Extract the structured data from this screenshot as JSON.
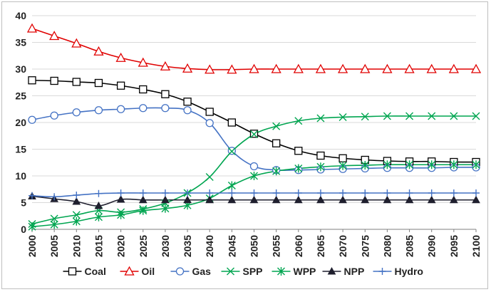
{
  "chart_data": {
    "type": "line",
    "title": "",
    "xlabel": "",
    "ylabel": "",
    "x": [
      2000,
      2005,
      2010,
      2015,
      2020,
      2025,
      2030,
      2035,
      2040,
      2045,
      2050,
      2055,
      2060,
      2065,
      2070,
      2075,
      2080,
      2085,
      2090,
      2095,
      2100
    ],
    "x_tick_labels": [
      "2000",
      "2005",
      "2010",
      "2015",
      "2020",
      "2025",
      "2030",
      "2035",
      "2040",
      "2045",
      "2050",
      "2055",
      "2060",
      "2065",
      "2070",
      "2075",
      "2080",
      "2085",
      "2090",
      "2095",
      "2100"
    ],
    "ylim": [
      0,
      40
    ],
    "y_ticks": [
      0,
      5,
      10,
      15,
      20,
      25,
      30,
      35,
      40
    ],
    "y_tick_labels": [
      "0",
      "5",
      "10",
      "15",
      "20",
      "25",
      "30",
      "35",
      "40"
    ],
    "grid": "horizontal",
    "legend_position": "bottom",
    "series": [
      {
        "name": "Coal",
        "color": "#000000",
        "marker": "square",
        "values": [
          27.9,
          27.8,
          27.6,
          27.4,
          26.9,
          26.2,
          25.3,
          23.9,
          22.0,
          20.0,
          17.9,
          16.1,
          14.7,
          13.8,
          13.3,
          13.0,
          12.8,
          12.7,
          12.7,
          12.6,
          12.6
        ]
      },
      {
        "name": "Oil",
        "color": "#e00000",
        "marker": "triangle",
        "values": [
          37.6,
          36.2,
          34.8,
          33.3,
          32.1,
          31.2,
          30.5,
          30.1,
          29.9,
          29.9,
          30.0,
          30.0,
          30.0,
          30.0,
          30.0,
          30.0,
          30.0,
          30.0,
          30.0,
          30.0,
          30.0
        ]
      },
      {
        "name": "Gas",
        "color": "#4472c4",
        "marker": "circle",
        "values": [
          20.5,
          21.3,
          21.9,
          22.3,
          22.5,
          22.7,
          22.7,
          22.3,
          19.9,
          14.7,
          11.8,
          11.1,
          11.1,
          11.2,
          11.3,
          11.4,
          11.5,
          11.5,
          11.5,
          11.6,
          11.6
        ]
      },
      {
        "name": "SPP",
        "color": "#00a550",
        "marker": "x",
        "values": [
          1.0,
          2.0,
          2.7,
          3.5,
          3.2,
          3.8,
          4.9,
          6.8,
          9.8,
          14.6,
          17.8,
          19.3,
          20.3,
          20.8,
          21.0,
          21.1,
          21.2,
          21.2,
          21.2,
          21.2,
          21.2
        ]
      },
      {
        "name": "WPP",
        "color": "#00a550",
        "marker": "asterisk",
        "values": [
          0.5,
          0.9,
          1.5,
          2.3,
          2.7,
          3.5,
          3.9,
          4.5,
          5.8,
          8.2,
          10.0,
          10.9,
          11.4,
          11.7,
          11.9,
          12.0,
          12.1,
          12.1,
          12.1,
          12.1,
          12.1
        ]
      },
      {
        "name": "NPP",
        "color": "#1f1f2e",
        "marker": "filled-triangle",
        "values": [
          6.2,
          5.7,
          5.2,
          4.4,
          5.6,
          5.5,
          5.5,
          5.5,
          5.5,
          5.5,
          5.5,
          5.5,
          5.5,
          5.5,
          5.5,
          5.5,
          5.5,
          5.5,
          5.5,
          5.5,
          5.5
        ]
      },
      {
        "name": "Hydro",
        "color": "#4472c4",
        "marker": "plus",
        "values": [
          6.3,
          6.1,
          6.4,
          6.7,
          6.8,
          6.8,
          6.8,
          6.8,
          6.8,
          6.8,
          6.8,
          6.8,
          6.8,
          6.8,
          6.8,
          6.8,
          6.8,
          6.8,
          6.8,
          6.8,
          6.8
        ]
      }
    ]
  }
}
